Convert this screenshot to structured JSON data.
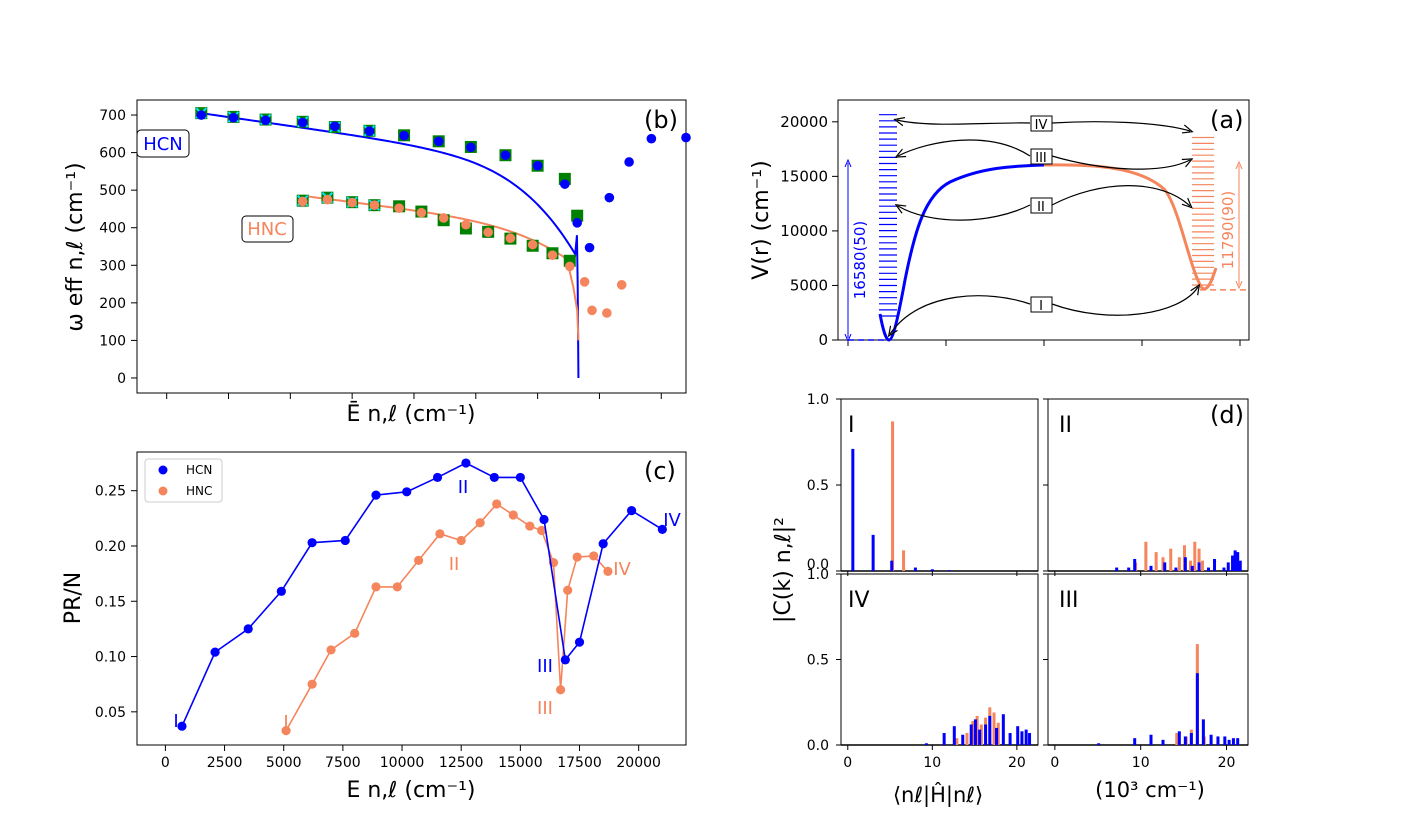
{
  "colors": {
    "hcn": "#0000ff",
    "hnc": "#f5855c",
    "green": "#008000",
    "cyan": "#00e5ff"
  },
  "chart_data": [
    {
      "id": "b",
      "type": "scatter",
      "panel_label": "(b)",
      "xlabel": "Ē n,ℓ (cm⁻¹)",
      "ylabel": "ω eff n,ℓ (cm⁻¹)",
      "xlim": [
        -1200,
        21000
      ],
      "ylim": [
        -40,
        740
      ],
      "yticks": [
        "0",
        "100",
        "200",
        "300",
        "400",
        "500",
        "600",
        "700"
      ],
      "xtick_values": [
        0,
        2500,
        5000,
        7500,
        10000,
        12500,
        15000,
        17500,
        20000
      ],
      "annotations": [
        "HCN",
        "HNC"
      ],
      "series": [
        {
          "name": "HCN points",
          "color": "hcn",
          "x": [
            1400,
            2700,
            4000,
            5500,
            6800,
            8200,
            9600,
            11000,
            12300,
            13700,
            15000,
            16100,
            16600,
            17100,
            17900,
            18700,
            19600,
            21000
          ],
          "y": [
            700,
            693,
            686,
            680,
            670,
            657,
            645,
            630,
            614,
            593,
            565,
            516,
            413,
            347,
            480,
            575,
            637,
            640
          ]
        },
        {
          "name": "HCN squares",
          "color": "green",
          "x": [
            1400,
            2700,
            4000,
            5500,
            6800,
            8200,
            9600,
            11000,
            12300,
            13700,
            15000,
            16100,
            16600
          ],
          "y": [
            705,
            695,
            688,
            682,
            668,
            658,
            646,
            630,
            615,
            593,
            565,
            530,
            432
          ]
        },
        {
          "name": "HNC points",
          "color": "hnc",
          "x": [
            5500,
            6500,
            7500,
            8400,
            9400,
            10300,
            11200,
            12100,
            13000,
            13900,
            14800,
            15600,
            16300,
            16900,
            17200,
            17800,
            18400
          ],
          "y": [
            470,
            475,
            467,
            460,
            452,
            440,
            426,
            408,
            388,
            372,
            355,
            327,
            297,
            256,
            180,
            173,
            248
          ]
        },
        {
          "name": "HNC squares",
          "color": "green",
          "x": [
            5500,
            6500,
            7500,
            8400,
            9400,
            10300,
            11200,
            12100,
            13000,
            13900,
            14800,
            15600,
            16300
          ],
          "y": [
            472,
            480,
            468,
            460,
            457,
            443,
            420,
            398,
            389,
            371,
            352,
            332,
            312
          ]
        }
      ]
    },
    {
      "id": "a",
      "type": "line",
      "panel_label": "(a)",
      "ylabel": "V(r) (cm⁻¹)",
      "ylim": [
        0,
        22000
      ],
      "yticks": [
        "0",
        "5000",
        "10000",
        "15000",
        "20000"
      ],
      "hcn_depth_label": "16580(50)",
      "hnc_depth_label": "11790(90)",
      "hcn_min": 0,
      "hnc_min": 4600,
      "barrier": 16200,
      "state_labels": [
        "IV",
        "III",
        "II",
        "I"
      ]
    },
    {
      "id": "c",
      "type": "line",
      "panel_label": "(c)",
      "xlabel": "E n,ℓ (cm⁻¹)",
      "ylabel": "PR/N",
      "xlim": [
        -1200,
        22000
      ],
      "ylim": [
        0.02,
        0.285
      ],
      "xticks": [
        "0",
        "2500",
        "5000",
        "7500",
        "10000",
        "12500",
        "15000",
        "17500",
        "20000"
      ],
      "yticks": [
        "0.05",
        "0.10",
        "0.15",
        "0.20",
        "0.25"
      ],
      "legend": [
        "HCN",
        "HNC"
      ],
      "series": [
        {
          "name": "HCN",
          "color": "hcn",
          "x": [
            700,
            2100,
            3500,
            4900,
            6200,
            7600,
            8900,
            10200,
            11500,
            12700,
            13900,
            15000,
            16000,
            16900,
            17500,
            18500,
            19700,
            21000
          ],
          "y": [
            0.037,
            0.104,
            0.125,
            0.159,
            0.203,
            0.205,
            0.246,
            0.249,
            0.262,
            0.275,
            0.262,
            0.262,
            0.224,
            0.097,
            0.113,
            0.202,
            0.232,
            0.215
          ]
        },
        {
          "name": "HNC",
          "color": "hnc",
          "x": [
            5100,
            6200,
            7000,
            8000,
            8900,
            9800,
            10700,
            11600,
            12500,
            13300,
            14000,
            14700,
            15400,
            15900,
            16400,
            16700,
            17000,
            17400,
            18100,
            18700
          ],
          "y": [
            0.033,
            0.075,
            0.106,
            0.121,
            0.163,
            0.163,
            0.187,
            0.211,
            0.205,
            0.221,
            0.238,
            0.228,
            0.218,
            0.214,
            0.185,
            0.07,
            0.16,
            0.19,
            0.191,
            0.177
          ]
        }
      ],
      "labels": {
        "hcn": [
          "I",
          "II",
          "III",
          "IV"
        ],
        "hnc": [
          "I",
          "II",
          "III",
          "IV"
        ]
      }
    },
    {
      "id": "d",
      "type": "bar",
      "panel_label": "(d)",
      "xlabel_left": "⟨nℓ|Ĥ|nℓ⟩",
      "xlabel_right": "(10³ cm⁻¹)",
      "ylabel": "|C(k) n,ℓ|²",
      "xlim": [
        -0.8,
        22.5
      ],
      "ylim": [
        0,
        1.0
      ],
      "xticks": [
        "0",
        "10",
        "20"
      ],
      "yticks": [
        "0.0",
        "0.5",
        "1.0"
      ],
      "subpanels": [
        {
          "label": "I",
          "hcn": {
            "x": [
              0.6,
              3.0,
              5.2,
              8.0,
              10.0,
              12.0
            ],
            "y": [
              0.71,
              0.21,
              0.06,
              0.02,
              0.01,
              0.005
            ]
          },
          "hnc": {
            "x": [
              5.3,
              6.6
            ],
            "y": [
              0.87,
              0.12
            ]
          }
        },
        {
          "label": "II",
          "hcn": {
            "x": [
              7.2,
              8.6,
              9.3,
              11.2,
              12.8,
              14.1,
              15.2,
              16.0,
              16.8,
              17.9,
              18.6,
              19.7,
              20.2,
              20.7,
              21.0,
              21.3,
              21.6
            ],
            "y": [
              0.02,
              0.02,
              0.07,
              0.03,
              0.05,
              0.02,
              0.08,
              0.03,
              0.05,
              0.02,
              0.07,
              0.02,
              0.05,
              0.09,
              0.12,
              0.11,
              0.06
            ]
          },
          "hnc": {
            "x": [
              9.4,
              10.6,
              11.8,
              12.6,
              13.5,
              14.5,
              15.1,
              15.8,
              16.3,
              16.8,
              17.2
            ],
            "y": [
              0.05,
              0.17,
              0.11,
              0.08,
              0.13,
              0.08,
              0.15,
              0.06,
              0.17,
              0.13,
              0.06
            ]
          }
        },
        {
          "label": "IV",
          "hcn": {
            "x": [
              9.3,
              11.4,
              12.6,
              13.6,
              14.6,
              15.1,
              15.6,
              16.3,
              16.8,
              17.6,
              18.4,
              19.2,
              20.1,
              20.6,
              21.1,
              21.5
            ],
            "y": [
              0.01,
              0.07,
              0.11,
              0.06,
              0.12,
              0.15,
              0.09,
              0.12,
              0.17,
              0.1,
              0.18,
              0.07,
              0.11,
              0.08,
              0.09,
              0.07
            ]
          },
          "hnc": {
            "x": [
              12.9,
              14.1,
              14.8,
              15.3,
              15.8,
              16.3,
              16.8,
              17.3,
              17.8
            ],
            "y": [
              0.04,
              0.07,
              0.14,
              0.17,
              0.12,
              0.16,
              0.22,
              0.19,
              0.13
            ]
          }
        },
        {
          "label": "III",
          "hcn": {
            "x": [
              5.1,
              9.3,
              11.2,
              12.6,
              14.5,
              15.2,
              15.9,
              16.6,
              17.3,
              18.2,
              19.0,
              19.8,
              20.3,
              20.8,
              21.3
            ],
            "y": [
              0.01,
              0.04,
              0.06,
              0.03,
              0.08,
              0.05,
              0.07,
              0.42,
              0.15,
              0.06,
              0.05,
              0.05,
              0.03,
              0.04,
              0.04
            ]
          },
          "hnc": {
            "x": [
              12.6,
              14.2,
              15.3,
              15.9,
              16.6,
              17.4
            ],
            "y": [
              0.03,
              0.07,
              0.05,
              0.09,
              0.59,
              0.05
            ]
          }
        }
      ]
    }
  ]
}
